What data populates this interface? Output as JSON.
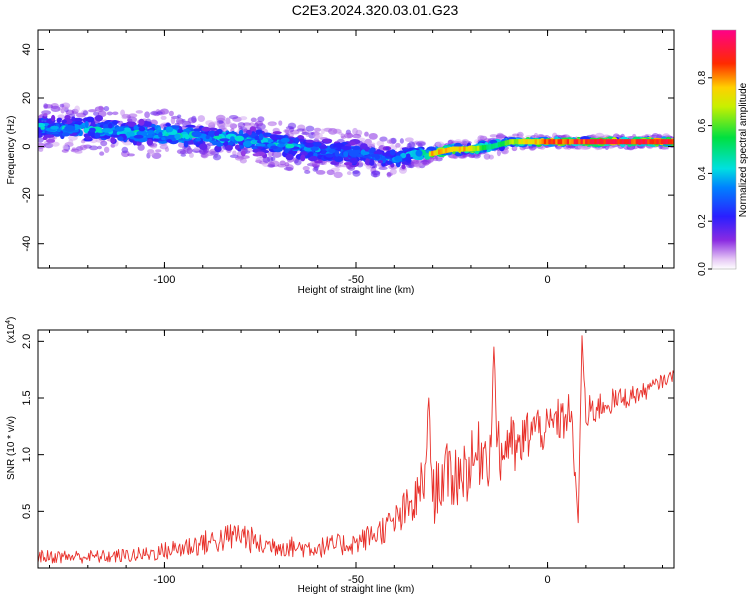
{
  "title": "C2E3.2024.320.03.01.G23",
  "chart_data": [
    {
      "type": "heatmap",
      "xlabel": "Height of straight line (km)",
      "ylabel": "Frequency (Hz)",
      "xlim": [
        -133,
        33
      ],
      "ylim": [
        -50,
        48
      ],
      "x_ticks": [
        -100,
        -50,
        0
      ],
      "y_ticks": [
        -40,
        -20,
        0,
        20,
        40
      ],
      "x_tick_labels": [
        "-100",
        "-50",
        "0"
      ],
      "y_tick_labels": [
        "-40",
        "-20",
        "0",
        "20",
        "40"
      ],
      "colorbar": {
        "label": "Normalized spectral amplitude",
        "range": [
          0,
          1
        ],
        "ticks": [
          "0.0",
          "0.2",
          "0.4",
          "0.6",
          "0.8"
        ],
        "colormap": "rainbow (violet-blue-cyan-green-yellow-red-magenta)"
      },
      "ridge": {
        "x": [
          -133,
          -120,
          -110,
          -100,
          -90,
          -80,
          -70,
          -60,
          -50,
          -45,
          -40,
          -35,
          -31,
          -25,
          -20,
          -15,
          -10,
          -5,
          0,
          10,
          20,
          33
        ],
        "frequency": [
          8,
          7,
          6,
          5,
          4,
          3,
          1,
          -2,
          -3,
          -4,
          -5,
          -3,
          -3,
          -1,
          -1,
          0,
          2,
          2,
          2,
          2,
          2,
          2
        ],
        "amplitude": [
          0.45,
          0.45,
          0.45,
          0.5,
          0.5,
          0.45,
          0.45,
          0.4,
          0.4,
          0.4,
          0.4,
          0.45,
          0.8,
          0.85,
          0.8,
          0.5,
          0.7,
          0.8,
          0.9,
          0.95,
          0.95,
          0.95
        ],
        "spread": [
          6,
          6,
          6,
          6,
          5,
          6,
          6,
          6,
          6,
          5,
          5,
          4,
          2,
          2,
          2,
          3,
          2,
          2,
          1.5,
          1.5,
          1.5,
          1.5
        ]
      }
    },
    {
      "type": "line",
      "xlabel": "Height of straight line (km)",
      "ylabel": "SNR (10 * v/v)",
      "y_multiplier_label": "(x10",
      "y_multiplier_exp": "4",
      "y_multiplier_close": ")",
      "xlim": [
        -133,
        33
      ],
      "ylim": [
        0,
        2.1
      ],
      "x_ticks": [
        -100,
        -50,
        0
      ],
      "y_ticks": [
        0.5,
        1.0,
        1.5,
        2.0
      ],
      "x_tick_labels": [
        "-100",
        "-50",
        "0"
      ],
      "y_tick_labels": [
        "0.5",
        "1.0",
        "1.5",
        "2.0"
      ],
      "color": "#e8302a",
      "series": [
        {
          "x": [
            -133,
            -125,
            -115,
            -105,
            -100,
            -95,
            -90,
            -85,
            -80,
            -75,
            -70,
            -65,
            -60,
            -55,
            -50,
            -45,
            -40,
            -37,
            -35,
            -33,
            -32,
            -31,
            -30,
            -28,
            -25,
            -20,
            -17,
            -15,
            -14,
            -13,
            -12,
            -10,
            -8,
            -5,
            -3,
            0,
            2,
            4,
            6,
            8,
            9,
            10,
            12,
            15,
            20,
            25,
            30,
            33
          ],
          "values": [
            0.1,
            0.1,
            0.1,
            0.12,
            0.15,
            0.18,
            0.22,
            0.25,
            0.3,
            0.2,
            0.2,
            0.18,
            0.18,
            0.2,
            0.22,
            0.3,
            0.4,
            0.5,
            0.55,
            0.7,
            0.8,
            1.5,
            0.6,
            0.8,
            0.8,
            0.9,
            1.05,
            1.0,
            1.95,
            1.0,
            1.0,
            1.15,
            1.0,
            1.2,
            1.25,
            1.2,
            1.3,
            1.3,
            1.4,
            0.4,
            2.05,
            1.3,
            1.4,
            1.45,
            1.5,
            1.55,
            1.65,
            1.7
          ],
          "noise": [
            0.06,
            0.06,
            0.06,
            0.07,
            0.08,
            0.1,
            0.11,
            0.12,
            0.14,
            0.1,
            0.1,
            0.09,
            0.09,
            0.1,
            0.1,
            0.12,
            0.15,
            0.2,
            0.2,
            0.25,
            0.25,
            0,
            0.25,
            0.3,
            0.3,
            0.3,
            0.3,
            0.3,
            0,
            0.3,
            0.3,
            0.25,
            0.25,
            0.25,
            0.2,
            0.2,
            0.2,
            0.2,
            0.2,
            0,
            0,
            0.2,
            0.15,
            0.12,
            0.1,
            0.08,
            0.06,
            0.05
          ]
        }
      ]
    }
  ]
}
